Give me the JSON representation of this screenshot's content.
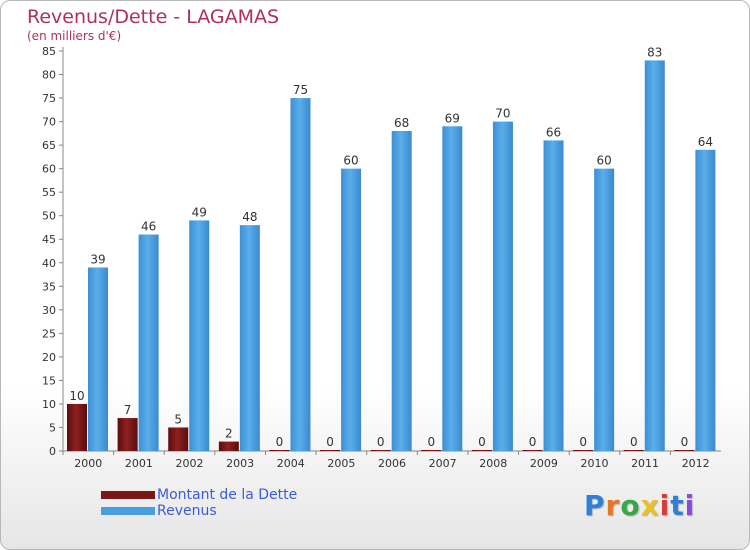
{
  "title": "Revenus/Dette - LAGAMAS",
  "subtitle": "(en milliers d'€)",
  "chart_data": {
    "type": "bar",
    "categories": [
      "2000",
      "2001",
      "2002",
      "2003",
      "2004",
      "2005",
      "2006",
      "2007",
      "2008",
      "2009",
      "2010",
      "2011",
      "2012"
    ],
    "series": [
      {
        "name": "Montant de la Dette",
        "values": [
          10,
          7,
          5,
          2,
          0,
          0,
          0,
          0,
          0,
          0,
          0,
          0,
          0
        ],
        "color": "#7a1616"
      },
      {
        "name": "Revenus",
        "values": [
          39,
          46,
          49,
          48,
          75,
          60,
          68,
          69,
          70,
          66,
          60,
          83,
          64
        ],
        "color": "#4a9ee0"
      }
    ],
    "ylim": [
      0,
      85
    ],
    "yticks": [
      0,
      5,
      10,
      15,
      20,
      25,
      30,
      35,
      40,
      45,
      50,
      55,
      60,
      65,
      70,
      75,
      80,
      85
    ],
    "grid": false,
    "legend_position": "bottom-left"
  },
  "logo": {
    "text": "Proxiti",
    "letters": [
      {
        "ch": "P",
        "color": "#2f7fd6"
      },
      {
        "ch": "r",
        "color": "#e8742a"
      },
      {
        "ch": "o",
        "color": "#3aa64a"
      },
      {
        "ch": "x",
        "color": "#e8c12a"
      },
      {
        "ch": "i",
        "color": "#d93a3a"
      },
      {
        "ch": "t",
        "color": "#2f7fd6"
      },
      {
        "ch": "i",
        "color": "#8a4ad9"
      }
    ]
  }
}
